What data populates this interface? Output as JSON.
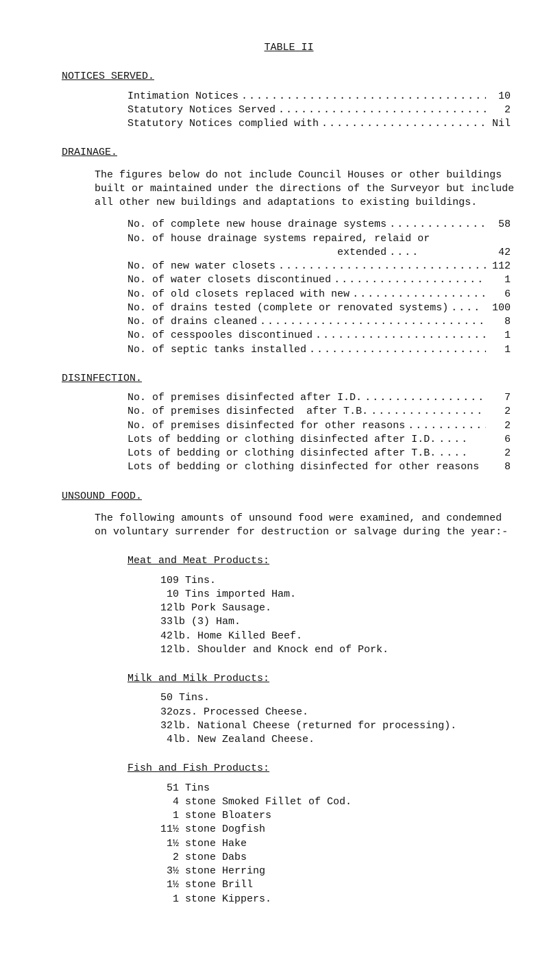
{
  "title": "TABLE II",
  "noticesHeading": "NOTICES SERVED.",
  "notices": [
    {
      "label": "Intimation Notices",
      "value": "10"
    },
    {
      "label": "Statutory Notices Served",
      "value": "2"
    },
    {
      "label": "Statutory Notices complied with",
      "value": "Nil"
    }
  ],
  "drainageHeading": "DRAINAGE.",
  "drainagePara": "The figures below do not include Council Houses or other buildings built or maintained under the directions of the Surveyor but include all other new buildings and adaptations to existing buildings.",
  "drainageRows": [
    {
      "label": "No. of complete new house drainage systems",
      "value": "58"
    },
    {
      "label": "No. of house drainage systems repaired, relaid or",
      "value": ""
    },
    {
      "label": "                                  extended",
      "value": "42",
      "short": true
    },
    {
      "label": "No. of new water closets",
      "value": "112"
    },
    {
      "label": "No. of water closets discontinued",
      "value": "1"
    },
    {
      "label": "No. of old closets replaced with new",
      "value": "6"
    },
    {
      "label": "No. of drains tested (complete or renovated systems)",
      "value": "100",
      "short": true
    },
    {
      "label": "No. of drains cleaned",
      "value": "8"
    },
    {
      "label": "No. of cesspooles discontinued",
      "value": "1"
    },
    {
      "label": "No. of septic tanks installed",
      "value": "1"
    }
  ],
  "disinfectionHeading": "DISINFECTION.",
  "disinfectionRows": [
    {
      "label": "No. of premises disinfected after I.D.",
      "value": "7"
    },
    {
      "label": "No. of premises disinfected  after T.B.",
      "value": "2"
    },
    {
      "label": "No. of premises disinfected for other reasons",
      "value": "2"
    },
    {
      "label": "Lots of bedding or clothing disinfected after I.D.",
      "value": "6",
      "short": true
    },
    {
      "label": "Lots of bedding or clothing disinfected after T.B.",
      "value": "2",
      "short": true
    },
    {
      "label": "Lots of bedding or clothing disinfected for other reasons",
      "value": "8",
      "nodots": true
    }
  ],
  "unsoundHeading": "UNSOUND FOOD.",
  "unsoundPara": "The following amounts of unsound food were examined, and condemned on voluntary surrender for destruction or salvage during the year:-",
  "meatHeading": "Meat and Meat Products:",
  "meatItems": [
    "109 Tins.",
    " 10 Tins imported Ham.",
    "12lb Pork Sausage.",
    "33lb (3) Ham.",
    "42lb. Home Killed Beef.",
    "12lb. Shoulder and Knock end of Pork."
  ],
  "milkHeading": "Milk and Milk Products:",
  "milkItems": [
    "50 Tins.",
    "32ozs. Processed Cheese.",
    "32lb. National Cheese (returned for processing).",
    " 4lb. New Zealand Cheese."
  ],
  "fishHeading": "Fish and Fish Products:",
  "fishItems": [
    " 51 Tins",
    "  4 stone Smoked Fillet of Cod.",
    "  1 stone Bloaters",
    "11½ stone Dogfish",
    " 1½ stone Hake",
    "  2 stone Dabs",
    " 3½ stone Herring",
    " 1½ stone Brill",
    "  1 stone Kippers."
  ],
  "colors": {
    "text": "#101010",
    "background": "#ffffff"
  },
  "typography": {
    "font_family": "Courier New",
    "font_size_pt": 11
  }
}
